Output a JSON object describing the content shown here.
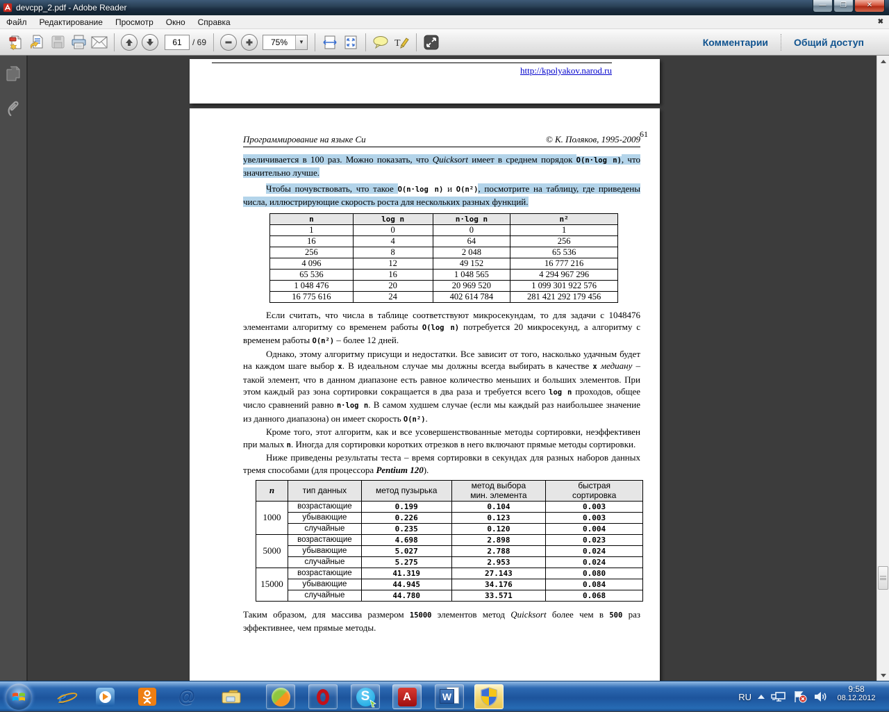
{
  "window": {
    "title": "devcpp_2.pdf - Adobe Reader"
  },
  "menu": {
    "items": [
      "Файл",
      "Редактирование",
      "Просмотр",
      "Окно",
      "Справка"
    ],
    "close_glyph": "✖"
  },
  "toolbar": {
    "page_current": "61",
    "page_total_label": "/ 69",
    "zoom_level": "75%",
    "comments_label": "Комментарии",
    "share_label": "Общий доступ",
    "icons": [
      "open-file",
      "convert-online",
      "save",
      "print",
      "email",
      "page-up",
      "page-down",
      "zoom-out",
      "zoom-in",
      "fit-width",
      "fit-page",
      "comment-bubble",
      "highlight-text",
      "fullscreen"
    ]
  },
  "window_buttons": {
    "minimize": "—",
    "maximize": "❐",
    "close": "✕"
  },
  "doc": {
    "prev_page_footer_link": "http://kpolyakov.narod.ru",
    "header": {
      "left": "Программирование на языке Си",
      "right": "© К. Поляков, 1995-2009",
      "page_num": "61"
    },
    "paras": {
      "p1": {
        "highlighted": true,
        "indent": false,
        "segs": [
          {
            "t": "увеличивается в 100 раз. Можно показать, что "
          },
          {
            "t": "Quicksort",
            "s": "i"
          },
          {
            "t": " имеет в среднем порядок "
          },
          {
            "t": "O(n·log n)",
            "s": "c"
          },
          {
            "t": ", что значительно лучше."
          }
        ]
      },
      "p2": {
        "highlighted": true,
        "indent": true,
        "segs": [
          {
            "t": "Чтобы почувствовать, что такое "
          },
          {
            "t": "O(n·log n)",
            "s": "c",
            "w": true
          },
          {
            "t": " и ",
            "w": true
          },
          {
            "t": "O(n²)",
            "s": "c",
            "w": true
          },
          {
            "t": ", посмотрите на таблицу, где приведены числа, иллюстрирующие скорость роста для нескольких разных функций."
          }
        ]
      },
      "p3": {
        "highlighted": false,
        "indent": true,
        "segs": [
          {
            "t": "Если считать, что числа в таблице соответствуют микросекундам, то для задачи с 1048476 элементами алгоритму со временем работы "
          },
          {
            "t": "O(log n)",
            "s": "c"
          },
          {
            "t": " потребуется 20 микросекунд, а алгоритму с временем работы "
          },
          {
            "t": "O(n²)",
            "s": "c"
          },
          {
            "t": " – более 12 дней."
          }
        ]
      },
      "p4": {
        "highlighted": false,
        "indent": true,
        "segs": [
          {
            "t": "Однако, этому алгоритму присущи и недостатки. Все зависит от того, насколько удачным будет на каждом шаге выбор "
          },
          {
            "t": "x",
            "s": "c"
          },
          {
            "t": ". В идеальном случае мы должны всегда выбирать в качестве "
          },
          {
            "t": "x",
            "s": "c"
          },
          {
            "t": " "
          },
          {
            "t": "медиану",
            "s": "i"
          },
          {
            "t": " – такой элемент, что в данном диапазоне есть равное количество меньших и больших элементов. При этом каждый раз зона сортировки сокращается в два раза и требуется всего "
          },
          {
            "t": "log n",
            "s": "c"
          },
          {
            "t": " проходов, общее число сравнений равно "
          },
          {
            "t": "n·log n",
            "s": "c"
          },
          {
            "t": ". В самом худшем случае (если мы каждый раз наибольшее значение из данного диапазона) он имеет скорость "
          },
          {
            "t": "O(n²)",
            "s": "c"
          },
          {
            "t": "."
          }
        ]
      },
      "p5": {
        "highlighted": false,
        "indent": true,
        "segs": [
          {
            "t": "Кроме того, этот алгоритм, как и все усовершенствованные методы сортировки, неэффективен при малых "
          },
          {
            "t": "n",
            "s": "c"
          },
          {
            "t": ". Иногда для сортировки коротких отрезков в него включают прямые методы сортировки."
          }
        ]
      },
      "p6": {
        "highlighted": false,
        "indent": true,
        "segs": [
          {
            "t": "Ниже приведены результаты теста – время сортировки в секундах для разных наборов данных тремя способами (для процессора "
          },
          {
            "t": "Pentium 120",
            "s": "bi"
          },
          {
            "t": ")."
          }
        ]
      },
      "p7": {
        "highlighted": false,
        "indent": false,
        "segs": [
          {
            "t": "Таким образом, для массива размером "
          },
          {
            "t": "15000",
            "s": "c"
          },
          {
            "t": " элементов метод "
          },
          {
            "t": "Quicksort",
            "s": "i"
          },
          {
            "t": " более чем в "
          },
          {
            "t": "500",
            "s": "c"
          },
          {
            "t": " раз эффективнее, чем прямые методы."
          }
        ]
      }
    },
    "growth_table": {
      "headers": [
        "n",
        "log n",
        "n·log n",
        "n²"
      ],
      "rows": [
        [
          "1",
          "0",
          "0",
          "1"
        ],
        [
          "16",
          "4",
          "64",
          "256"
        ],
        [
          "256",
          "8",
          "2 048",
          "65 536"
        ],
        [
          "4 096",
          "12",
          "49 152",
          "16 777 216"
        ],
        [
          "65 536",
          "16",
          "1 048 565",
          "4 294 967 296"
        ],
        [
          "1 048 476",
          "20",
          "20 969 520",
          "1 099 301 922 576"
        ],
        [
          "16 775 616",
          "24",
          "402 614 784",
          "281 421 292 179 456"
        ]
      ]
    },
    "bench_table": {
      "headers": [
        "n",
        "тип данных",
        "метод пузырька",
        "метод выбора\nмин. элемента",
        "быстрая\nсортировка"
      ],
      "groups": [
        {
          "n": "1000",
          "rows": [
            [
              "возрастающие",
              "0.199",
              "0.104",
              "0.003"
            ],
            [
              "убывающие",
              "0.226",
              "0.123",
              "0.003"
            ],
            [
              "случайные",
              "0.235",
              "0.120",
              "0.004"
            ]
          ]
        },
        {
          "n": "5000",
          "rows": [
            [
              "возрастающие",
              "4.698",
              "2.898",
              "0.023"
            ],
            [
              "убывающие",
              "5.027",
              "2.788",
              "0.024"
            ],
            [
              "случайные",
              "5.275",
              "2.953",
              "0.024"
            ]
          ]
        },
        {
          "n": "15000",
          "rows": [
            [
              "возрастающие",
              "41.319",
              "27.143",
              "0.080"
            ],
            [
              "убывающие",
              "44.945",
              "34.176",
              "0.084"
            ],
            [
              "случайные",
              "44.780",
              "33.571",
              "0.068"
            ]
          ]
        }
      ]
    }
  },
  "taskbar": {
    "apps": [
      "start",
      "internet-explorer",
      "media-player",
      "odnoklassniki",
      "mailru",
      "explorer",
      "green-orange-app",
      "opera",
      "skype",
      "adobe-reader",
      "word",
      "defender-shield"
    ],
    "tray": {
      "lang": "RU",
      "icons": [
        "hidden-icons",
        "network",
        "action-center-alert",
        "volume"
      ],
      "time": "9:58",
      "date": "08.12.2012"
    }
  }
}
